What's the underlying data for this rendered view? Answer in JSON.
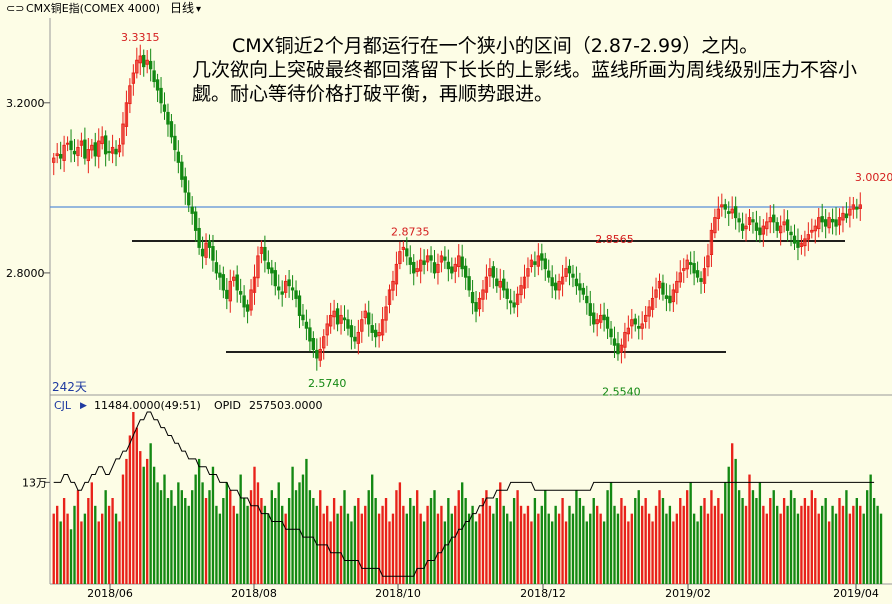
{
  "header": {
    "title": "CMX铜E指(COMEX 4000)",
    "period": "日线"
  },
  "annotation": "CMX铜近2个月都运行在一个狭小的区间（2.87-2.99）之内。\n几次欲向上突破最终都回落留下长长的上影线。蓝线所画为周线级别压力不容小觑。耐心等待价格打破平衡，再顺势跟进。",
  "price_panel": {
    "range_label": "242天"
  },
  "volume_panel": {
    "indicator": "CJL",
    "cjl_value": "11484.0000(49:51)",
    "opid_label": "OPID",
    "opid_value": "257503.0000"
  },
  "colors": {
    "up": "#e8221a",
    "down": "#138813",
    "blue_line": "#5a8fd8",
    "background": "#fdfde6"
  },
  "chart_data": [
    {
      "type": "candlestick",
      "y_ticks": [
        {
          "value": 3.2,
          "label": "3.2000"
        },
        {
          "value": 2.8,
          "label": "2.8000"
        }
      ],
      "ylim": [
        2.52,
        3.39
      ],
      "x_ticks": [
        "2018/06",
        "2018/08",
        "2018/10",
        "2018/12",
        "2019/02",
        "2019/04"
      ],
      "annotations": [
        {
          "label": "3.3315",
          "value": 3.3315,
          "type": "high"
        },
        {
          "label": "2.5740",
          "value": 2.574,
          "type": "low"
        },
        {
          "label": "2.8735",
          "value": 2.8735,
          "type": "high"
        },
        {
          "label": "2.8565",
          "value": 2.8565,
          "type": "high"
        },
        {
          "label": "2.5540",
          "value": 2.554,
          "type": "low"
        },
        {
          "label": "3.0020",
          "value": 3.002,
          "type": "high"
        }
      ],
      "lines": [
        {
          "name": "blue",
          "value": 2.955,
          "color": "#5a8fd8"
        },
        {
          "name": "black-upper",
          "value": 2.875,
          "color": "#000000"
        },
        {
          "name": "black-lower",
          "value": 2.614,
          "color": "#000000"
        }
      ],
      "closes": [
        3.07,
        3.08,
        3.07,
        3.1,
        3.105,
        3.09,
        3.08,
        3.095,
        3.11,
        3.07,
        3.09,
        3.1,
        3.075,
        3.11,
        3.12,
        3.08,
        3.085,
        3.095,
        3.08,
        3.1,
        3.15,
        3.2,
        3.24,
        3.27,
        3.3,
        3.31,
        3.285,
        3.3,
        3.28,
        3.25,
        3.23,
        3.2,
        3.18,
        3.15,
        3.12,
        3.09,
        3.06,
        3.02,
        2.99,
        2.96,
        2.94,
        2.9,
        2.86,
        2.84,
        2.87,
        2.86,
        2.83,
        2.8,
        2.79,
        2.76,
        2.74,
        2.78,
        2.79,
        2.76,
        2.75,
        2.72,
        2.71,
        2.76,
        2.79,
        2.84,
        2.86,
        2.83,
        2.81,
        2.8,
        2.77,
        2.76,
        2.75,
        2.78,
        2.77,
        2.76,
        2.74,
        2.7,
        2.69,
        2.67,
        2.64,
        2.62,
        2.6,
        2.62,
        2.65,
        2.68,
        2.7,
        2.71,
        2.68,
        2.7,
        2.69,
        2.67,
        2.65,
        2.64,
        2.66,
        2.69,
        2.71,
        2.68,
        2.66,
        2.65,
        2.66,
        2.69,
        2.72,
        2.76,
        2.78,
        2.82,
        2.85,
        2.86,
        2.84,
        2.82,
        2.8,
        2.81,
        2.83,
        2.82,
        2.84,
        2.83,
        2.8,
        2.82,
        2.84,
        2.83,
        2.81,
        2.8,
        2.82,
        2.84,
        2.81,
        2.79,
        2.76,
        2.73,
        2.71,
        2.74,
        2.76,
        2.79,
        2.81,
        2.79,
        2.77,
        2.78,
        2.76,
        2.74,
        2.73,
        2.72,
        2.75,
        2.77,
        2.79,
        2.81,
        2.83,
        2.82,
        2.84,
        2.83,
        2.81,
        2.79,
        2.77,
        2.76,
        2.78,
        2.79,
        2.81,
        2.8,
        2.79,
        2.77,
        2.76,
        2.75,
        2.73,
        2.7,
        2.68,
        2.69,
        2.7,
        2.69,
        2.67,
        2.65,
        2.63,
        2.61,
        2.63,
        2.66,
        2.67,
        2.69,
        2.68,
        2.67,
        2.68,
        2.7,
        2.72,
        2.74,
        2.76,
        2.78,
        2.75,
        2.74,
        2.73,
        2.76,
        2.78,
        2.8,
        2.81,
        2.83,
        2.82,
        2.8,
        2.79,
        2.78,
        2.81,
        2.84,
        2.9,
        2.93,
        2.95,
        2.96,
        2.95,
        2.94,
        2.95,
        2.93,
        2.92,
        2.9,
        2.91,
        2.93,
        2.92,
        2.9,
        2.89,
        2.91,
        2.92,
        2.93,
        2.92,
        2.9,
        2.91,
        2.92,
        2.9,
        2.89,
        2.87,
        2.86,
        2.87,
        2.88,
        2.89,
        2.9,
        2.91,
        2.93,
        2.92,
        2.91,
        2.93,
        2.92,
        2.91,
        2.93,
        2.94,
        2.93,
        2.95,
        2.96,
        2.95,
        2.96
      ]
    },
    {
      "type": "bar+line",
      "name": "CJL",
      "y_ticks": [
        {
          "value": 130000,
          "label": "13万"
        }
      ],
      "x_ticks": [
        "2018/06",
        "2018/08",
        "2018/10",
        "2018/12",
        "2019/02",
        "2019/04"
      ],
      "volume_in_10k": [
        9,
        10,
        8,
        11,
        9,
        7,
        10,
        12,
        8,
        9,
        11,
        13,
        10,
        8,
        9,
        12,
        10,
        11,
        9,
        8,
        14,
        16,
        19,
        22,
        20,
        17,
        15,
        16,
        18,
        15,
        13,
        12,
        14,
        11,
        12,
        10,
        13,
        12,
        11,
        10,
        12,
        14,
        16,
        13,
        11,
        12,
        15,
        10,
        9,
        11,
        13,
        12,
        10,
        9,
        14,
        11,
        10,
        12,
        15,
        13,
        11,
        10,
        9,
        12,
        11,
        13,
        10,
        9,
        11,
        15,
        12,
        13,
        14,
        16,
        12,
        11,
        10,
        12,
        9,
        10,
        8,
        11,
        9,
        10,
        12,
        9,
        8,
        10,
        11,
        9,
        10,
        12,
        14,
        11,
        9,
        10,
        11,
        8,
        9,
        12,
        13,
        10,
        9,
        11,
        10,
        12,
        9,
        8,
        10,
        11,
        12,
        9,
        10,
        8,
        11,
        9,
        10,
        12,
        13,
        11,
        9,
        10,
        8,
        9,
        11,
        12,
        10,
        9,
        11,
        13,
        10,
        9,
        8,
        11,
        12,
        10,
        9,
        10,
        8,
        11,
        9,
        10,
        12,
        9,
        8,
        10,
        9,
        11,
        8,
        10,
        9,
        12,
        11,
        10,
        8,
        9,
        11,
        10,
        9,
        8,
        12,
        13,
        10,
        9,
        11,
        10,
        8,
        9,
        11,
        12,
        10,
        11,
        9,
        8,
        10,
        12,
        11,
        9,
        10,
        8,
        9,
        11,
        10,
        12,
        13,
        9,
        8,
        10,
        11,
        9,
        12,
        10,
        11,
        9,
        13,
        15,
        18,
        16,
        12,
        11,
        10,
        14,
        12,
        11,
        13,
        10,
        9,
        11,
        12,
        10,
        9,
        11,
        10,
        12,
        11,
        9,
        10,
        11,
        10,
        12,
        11,
        9,
        10,
        11,
        8,
        10,
        9,
        11,
        10,
        12,
        9,
        10,
        11,
        10,
        9,
        12,
        14,
        11,
        10,
        9
      ],
      "opid": [
        13,
        13,
        13,
        14,
        14,
        13,
        13,
        12,
        12,
        13,
        13,
        14,
        14,
        15,
        15,
        14,
        14,
        15,
        16,
        16,
        17,
        17,
        18,
        19,
        20,
        21,
        21,
        22,
        22,
        21,
        21,
        20,
        20,
        19,
        19,
        18,
        18,
        17,
        17,
        16,
        16,
        16,
        15,
        15,
        15,
        14,
        14,
        14,
        13,
        13,
        13,
        12,
        12,
        12,
        11,
        11,
        11,
        10,
        10,
        10,
        9,
        9,
        9,
        8,
        8,
        8,
        8,
        7,
        7,
        7,
        7,
        7,
        6,
        6,
        6,
        6,
        5,
        5,
        5,
        5,
        4,
        4,
        4,
        4,
        3,
        3,
        3,
        3,
        3,
        2,
        2,
        2,
        2,
        2,
        2,
        1,
        1,
        1,
        1,
        1,
        1,
        1,
        1,
        1,
        1,
        2,
        2,
        2,
        3,
        3,
        3,
        4,
        4,
        5,
        5,
        6,
        6,
        7,
        7,
        8,
        8,
        9,
        9,
        10,
        10,
        11,
        11,
        11,
        12,
        12,
        12,
        12,
        13,
        13,
        13,
        13,
        13,
        13,
        13,
        12,
        12,
        12,
        12,
        12,
        12,
        12,
        12,
        12,
        12,
        12,
        12,
        12,
        12,
        12,
        12,
        12,
        13,
        13,
        13,
        13,
        13,
        13,
        13,
        13,
        13,
        13,
        13,
        13,
        13,
        13,
        13,
        13,
        13,
        13,
        13,
        13,
        13,
        13,
        13,
        13,
        13,
        13,
        13,
        13,
        13,
        13,
        13,
        13,
        13,
        13,
        13,
        13,
        13,
        13,
        13,
        13,
        13,
        13,
        13,
        13,
        13,
        13,
        13,
        13,
        13,
        13,
        13,
        13,
        13,
        13,
        13,
        13,
        13,
        13,
        13,
        13,
        13,
        13,
        13,
        13,
        13,
        13,
        13,
        13,
        13,
        13,
        13,
        13,
        13,
        13,
        13,
        13,
        13,
        13,
        13,
        13,
        13,
        13
      ]
    }
  ]
}
